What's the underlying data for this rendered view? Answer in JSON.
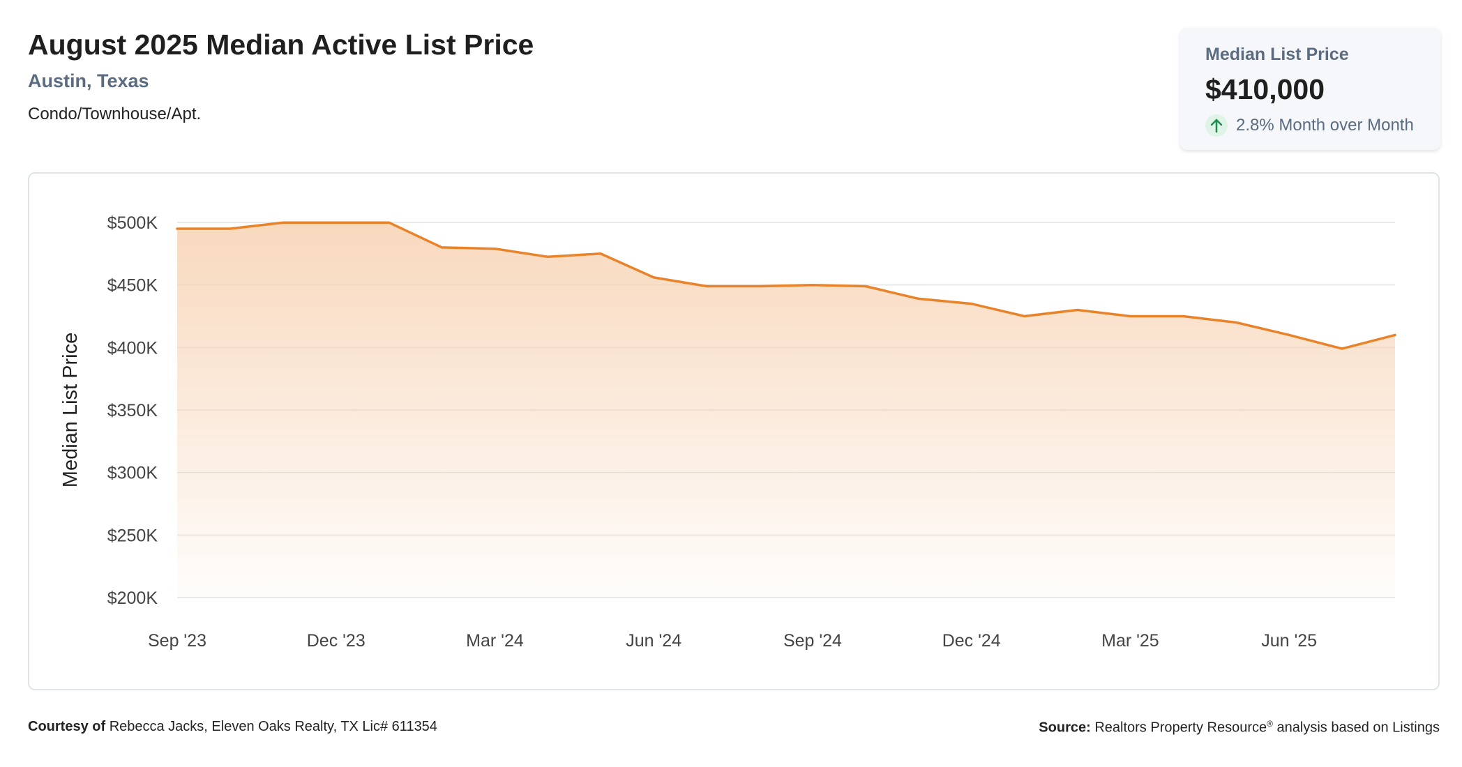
{
  "header": {
    "title": "August 2025 Median Active List Price",
    "location": "Austin, Texas",
    "category": "Condo/Townhouse/Apt."
  },
  "stat_card": {
    "label": "Median List Price",
    "value": "$410,000",
    "change": "2.8% Month over Month",
    "change_direction": "up",
    "icon": "arrow-up-icon",
    "change_color": "#1e8e4e"
  },
  "footer": {
    "courtesy_label": "Courtesy of",
    "courtesy_text": "Rebecca Jacks, Eleven Oaks Realty, TX Lic# 611354",
    "source_label": "Source:",
    "source_text_pre": "Realtors Property Resource",
    "source_mark": "®",
    "source_text_post": " analysis based on Listings"
  },
  "colors": {
    "line": "#e8832a",
    "fill_top": "#f7d2b2",
    "grid": "#e2e2e2"
  },
  "chart_data": {
    "type": "area",
    "ylabel": "Median List Price",
    "ylim": [
      200000,
      500000
    ],
    "yticks": [
      200000,
      250000,
      300000,
      350000,
      400000,
      450000,
      500000
    ],
    "ytick_labels": [
      "$200K",
      "$250K",
      "$300K",
      "$350K",
      "$400K",
      "$450K",
      "$500K"
    ],
    "x": [
      "Sep '23",
      "Oct '23",
      "Nov '23",
      "Dec '23",
      "Jan '24",
      "Feb '24",
      "Mar '24",
      "Apr '24",
      "May '24",
      "Jun '24",
      "Jul '24",
      "Aug '24",
      "Sep '24",
      "Oct '24",
      "Nov '24",
      "Dec '24",
      "Jan '25",
      "Feb '25",
      "Mar '25",
      "Apr '25",
      "May '25",
      "Jun '25",
      "Jul '25",
      "Aug '25"
    ],
    "values": [
      495000,
      495000,
      499900,
      499900,
      499900,
      480000,
      479000,
      472500,
      475000,
      456000,
      449000,
      449000,
      449900,
      449000,
      439000,
      435000,
      425000,
      430000,
      425000,
      425000,
      420000,
      410000,
      399000,
      410000
    ],
    "xtick_labels": [
      "Sep '23",
      "Dec '23",
      "Mar '24",
      "Jun '24",
      "Sep '24",
      "Dec '24",
      "Mar '25",
      "Jun '25"
    ],
    "grid": true,
    "legend": "none"
  }
}
